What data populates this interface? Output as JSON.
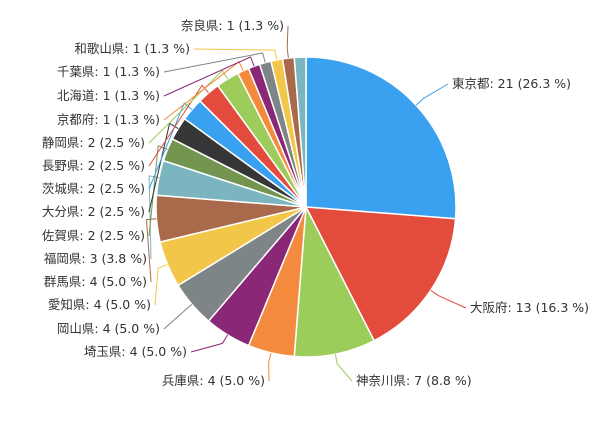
{
  "chart_data": {
    "type": "pie",
    "title": "",
    "label_format": "{name}: {value} ({pct} %)",
    "slices": [
      {
        "name": "東京都",
        "value": 21,
        "pct": "26.3",
        "color": "#3aa0f0"
      },
      {
        "name": "大阪府",
        "value": 13,
        "pct": "16.3",
        "color": "#e34b3c"
      },
      {
        "name": "神奈川県",
        "value": 7,
        "pct": "8.8",
        "color": "#9ccc5a"
      },
      {
        "name": "兵庫県",
        "value": 4,
        "pct": "5.0",
        "color": "#f38a3d"
      },
      {
        "name": "埼玉県",
        "value": 4,
        "pct": "5.0",
        "color": "#8a2776"
      },
      {
        "name": "岡山県",
        "value": 4,
        "pct": "5.0",
        "color": "#7d8586"
      },
      {
        "name": "愛知県",
        "value": 4,
        "pct": "5.0",
        "color": "#f2c749"
      },
      {
        "name": "群馬県",
        "value": 4,
        "pct": "5.0",
        "color": "#a9694b"
      },
      {
        "name": "福岡県",
        "value": 3,
        "pct": "3.8",
        "color": "#7bb6c0"
      },
      {
        "name": "佐賀県",
        "value": 2,
        "pct": "2.5",
        "color": "#74954f"
      },
      {
        "name": "大分県",
        "value": 2,
        "pct": "2.5",
        "color": "#363636"
      },
      {
        "name": "茨城県",
        "value": 2,
        "pct": "2.5",
        "color": "#3aa0f0"
      },
      {
        "name": "長野県",
        "value": 2,
        "pct": "2.5",
        "color": "#e34b3c"
      },
      {
        "name": "静岡県",
        "value": 2,
        "pct": "2.5",
        "color": "#9ccc5a"
      },
      {
        "name": "京都府",
        "value": 1,
        "pct": "1.3",
        "color": "#f38a3d"
      },
      {
        "name": "北海道",
        "value": 1,
        "pct": "1.3",
        "color": "#8a2776"
      },
      {
        "name": "千葉県",
        "value": 1,
        "pct": "1.3",
        "color": "#7d8586"
      },
      {
        "name": "和歌山県",
        "value": 1,
        "pct": "1.3",
        "color": "#f2c749"
      },
      {
        "name": "奈良県",
        "value": 1,
        "pct": "1.3",
        "color": "#a9694b"
      },
      {
        "name": "",
        "value": 1,
        "pct": "1.3",
        "color": "#7bb6c0"
      }
    ],
    "label_color": "#333333"
  }
}
